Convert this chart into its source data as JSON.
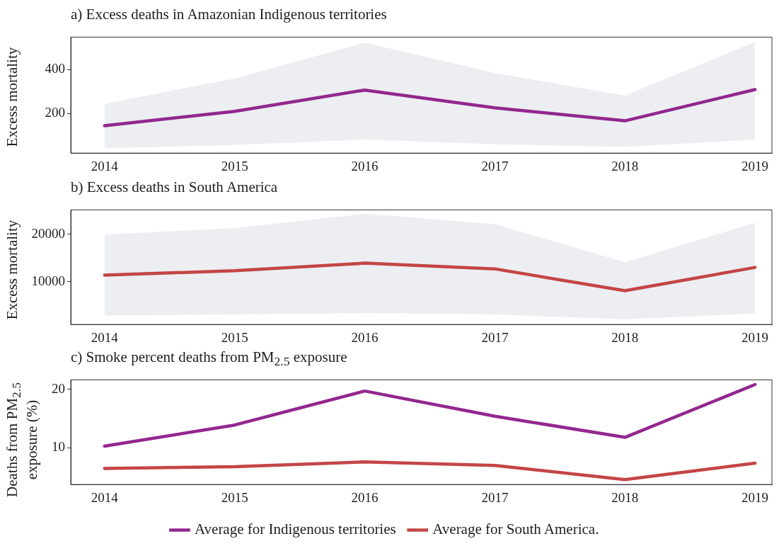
{
  "chart_data": [
    {
      "type": "line",
      "title": "a) Excess deaths in Amazonian Indigenous territories",
      "ylabel": "Excess mortality",
      "x": [
        2014,
        2015,
        2016,
        2017,
        2018,
        2019
      ],
      "xlim": [
        2013.74,
        2019.13
      ],
      "xticks": [
        2014,
        2015,
        2016,
        2017,
        2018,
        2019
      ],
      "ylim": [
        19,
        547
      ],
      "yticks": [
        200,
        400
      ],
      "grid": false,
      "marker": "none",
      "line_style": "solid",
      "series": [
        {
          "color": "#93278f",
          "values": [
            144,
            209,
            306,
            225,
            166,
            308
          ],
          "lower": [
            41,
            56,
            81,
            59,
            47,
            81
          ],
          "upper": [
            244,
            359,
            522,
            384,
            281,
            525
          ]
        }
      ]
    },
    {
      "type": "line",
      "title": "b) Excess deaths in South America",
      "ylabel": "Excess mortality",
      "x": [
        2014,
        2015,
        2016,
        2017,
        2018,
        2019
      ],
      "xlim": [
        2013.74,
        2019.13
      ],
      "xticks": [
        2014,
        2015,
        2016,
        2017,
        2018,
        2019
      ],
      "ylim": [
        1000,
        25100
      ],
      "yticks": [
        10000,
        20000
      ],
      "grid": false,
      "marker": "none",
      "line_style": "solid",
      "series": [
        {
          "color": "#c44545",
          "values": [
            11400,
            12300,
            13900,
            12700,
            8100,
            13000
          ],
          "lower": [
            2900,
            3100,
            3400,
            3100,
            2100,
            3300
          ],
          "upper": [
            19900,
            21300,
            24300,
            22100,
            14100,
            22400
          ]
        }
      ]
    },
    {
      "type": "line",
      "title": "c) Smoke percent deaths from PM$_{2.5}$ exposure",
      "ylabel": "Deaths from PM$_{2.5}$ exposure (%)",
      "x": [
        2014,
        2015,
        2016,
        2017,
        2018,
        2019
      ],
      "xlim": [
        2013.74,
        2019.13
      ],
      "xticks": [
        2014,
        2015,
        2016,
        2017,
        2018,
        2019
      ],
      "ylim": [
        3.75,
        21.6
      ],
      "yticks": [
        10,
        20
      ],
      "grid": false,
      "marker": "none",
      "line_style": "solid",
      "legend": "bottom",
      "series": [
        {
          "name": "Average for Indigenous territories",
          "color": "#93278f",
          "values": [
            10.3,
            13.9,
            19.7,
            15.4,
            11.8,
            20.8
          ]
        },
        {
          "name": "Average for South America.",
          "color": "#c44545",
          "values": [
            6.5,
            6.8,
            7.6,
            7.0,
            4.6,
            7.4
          ]
        }
      ]
    }
  ]
}
